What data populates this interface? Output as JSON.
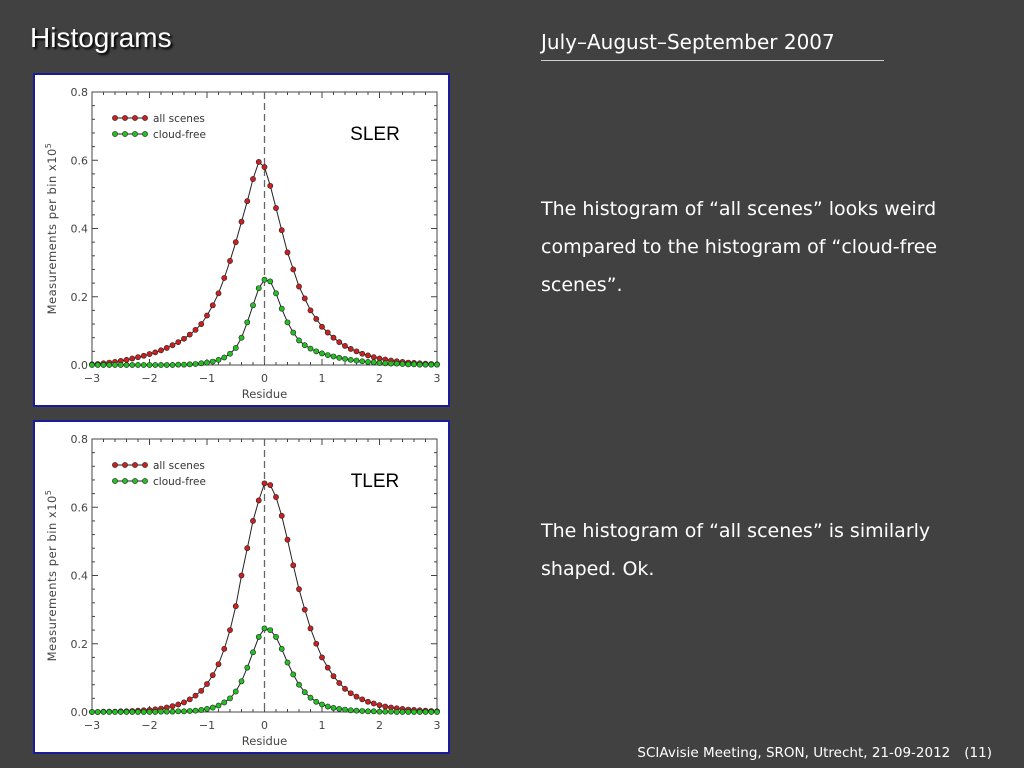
{
  "header": {
    "title": "Histograms",
    "period": "July–August–September 2007"
  },
  "notes": [
    "The histogram of “all scenes” looks weird compared to the histogram of “cloud-free scenes”.",
    "The histogram of “all scenes” is similarly shaped. Ok."
  ],
  "footer": {
    "text": "SCIAvisie Meeting, SRON, Utrecht, 21-09-2012",
    "page": "(11)"
  },
  "colors": {
    "background": "#414141",
    "all_scenes": "#cc2020",
    "cloud_free": "#22c022",
    "panel_border": "#1a1a9a"
  },
  "chart_data": [
    {
      "type": "line",
      "title": "SLER",
      "xlabel": "Residue",
      "ylabel": "Measurements per bin x10",
      "ylabel_exponent": "5",
      "xlim": [
        -3,
        3
      ],
      "ylim": [
        0,
        0.8
      ],
      "xticks": [
        "−3",
        "−2",
        "−1",
        "0",
        "1",
        "2",
        "3"
      ],
      "yticks": [
        "0.0",
        "0.2",
        "0.4",
        "0.6",
        "0.8"
      ],
      "reference_line_x": 0,
      "legend_position": "top-left",
      "x": [
        -3.0,
        -2.9,
        -2.8,
        -2.7,
        -2.6,
        -2.5,
        -2.4,
        -2.3,
        -2.2,
        -2.1,
        -2.0,
        -1.9,
        -1.8,
        -1.7,
        -1.6,
        -1.5,
        -1.4,
        -1.3,
        -1.2,
        -1.1,
        -1.0,
        -0.9,
        -0.8,
        -0.7,
        -0.6,
        -0.5,
        -0.4,
        -0.3,
        -0.2,
        -0.1,
        0.0,
        0.1,
        0.2,
        0.3,
        0.4,
        0.5,
        0.6,
        0.7,
        0.8,
        0.9,
        1.0,
        1.1,
        1.2,
        1.3,
        1.4,
        1.5,
        1.6,
        1.7,
        1.8,
        1.9,
        2.0,
        2.1,
        2.2,
        2.3,
        2.4,
        2.5,
        2.6,
        2.7,
        2.8,
        2.9,
        3.0
      ],
      "series": [
        {
          "name": "all scenes",
          "values": [
            0.002,
            0.003,
            0.005,
            0.007,
            0.009,
            0.012,
            0.015,
            0.019,
            0.023,
            0.027,
            0.032,
            0.037,
            0.043,
            0.05,
            0.058,
            0.067,
            0.077,
            0.089,
            0.103,
            0.12,
            0.145,
            0.175,
            0.21,
            0.255,
            0.305,
            0.36,
            0.42,
            0.48,
            0.545,
            0.595,
            0.58,
            0.525,
            0.46,
            0.395,
            0.33,
            0.28,
            0.23,
            0.195,
            0.16,
            0.135,
            0.112,
            0.095,
            0.08,
            0.067,
            0.056,
            0.047,
            0.04,
            0.033,
            0.028,
            0.023,
            0.019,
            0.016,
            0.013,
            0.011,
            0.009,
            0.007,
            0.006,
            0.005,
            0.004,
            0.003,
            0.002
          ]
        },
        {
          "name": "cloud-free",
          "values": [
            0.0,
            0.0,
            0.0,
            0.0,
            0.0,
            0.0,
            0.0,
            0.0,
            0.0,
            0.0,
            0.0,
            0.0,
            0.0,
            0.0,
            0.0,
            0.001,
            0.001,
            0.002,
            0.003,
            0.005,
            0.007,
            0.01,
            0.015,
            0.022,
            0.033,
            0.05,
            0.08,
            0.125,
            0.175,
            0.225,
            0.25,
            0.245,
            0.21,
            0.165,
            0.125,
            0.095,
            0.072,
            0.058,
            0.048,
            0.04,
            0.034,
            0.029,
            0.025,
            0.021,
            0.018,
            0.015,
            0.013,
            0.011,
            0.009,
            0.008,
            0.006,
            0.005,
            0.004,
            0.004,
            0.003,
            0.002,
            0.002,
            0.001,
            0.001,
            0.001,
            0.001
          ]
        }
      ]
    },
    {
      "type": "line",
      "title": "TLER",
      "xlabel": "Residue",
      "ylabel": "Measurements per bin x10",
      "ylabel_exponent": "5",
      "xlim": [
        -3,
        3
      ],
      "ylim": [
        0,
        0.8
      ],
      "xticks": [
        "−3",
        "−2",
        "−1",
        "0",
        "1",
        "2",
        "3"
      ],
      "yticks": [
        "0.0",
        "0.2",
        "0.4",
        "0.6",
        "0.8"
      ],
      "reference_line_x": 0,
      "legend_position": "top-left",
      "x": [
        -3.0,
        -2.9,
        -2.8,
        -2.7,
        -2.6,
        -2.5,
        -2.4,
        -2.3,
        -2.2,
        -2.1,
        -2.0,
        -1.9,
        -1.8,
        -1.7,
        -1.6,
        -1.5,
        -1.4,
        -1.3,
        -1.2,
        -1.1,
        -1.0,
        -0.9,
        -0.8,
        -0.7,
        -0.6,
        -0.5,
        -0.4,
        -0.3,
        -0.2,
        -0.1,
        0.0,
        0.1,
        0.2,
        0.3,
        0.4,
        0.5,
        0.6,
        0.7,
        0.8,
        0.9,
        1.0,
        1.1,
        1.2,
        1.3,
        1.4,
        1.5,
        1.6,
        1.7,
        1.8,
        1.9,
        2.0,
        2.1,
        2.2,
        2.3,
        2.4,
        2.5,
        2.6,
        2.7,
        2.8,
        2.9,
        3.0
      ],
      "series": [
        {
          "name": "all scenes",
          "values": [
            0.0,
            0.0,
            0.001,
            0.001,
            0.001,
            0.002,
            0.002,
            0.003,
            0.004,
            0.005,
            0.006,
            0.008,
            0.01,
            0.013,
            0.017,
            0.022,
            0.028,
            0.037,
            0.048,
            0.062,
            0.082,
            0.108,
            0.14,
            0.185,
            0.24,
            0.31,
            0.4,
            0.48,
            0.56,
            0.62,
            0.67,
            0.665,
            0.63,
            0.575,
            0.505,
            0.43,
            0.36,
            0.3,
            0.245,
            0.2,
            0.16,
            0.13,
            0.105,
            0.085,
            0.068,
            0.055,
            0.045,
            0.037,
            0.03,
            0.025,
            0.02,
            0.016,
            0.013,
            0.011,
            0.009,
            0.007,
            0.006,
            0.005,
            0.004,
            0.003,
            0.002
          ]
        },
        {
          "name": "cloud-free",
          "values": [
            0.0,
            0.0,
            0.0,
            0.0,
            0.0,
            0.0,
            0.0,
            0.0,
            0.0,
            0.0,
            0.0,
            0.0,
            0.001,
            0.001,
            0.001,
            0.002,
            0.002,
            0.003,
            0.004,
            0.006,
            0.009,
            0.013,
            0.019,
            0.028,
            0.04,
            0.06,
            0.09,
            0.13,
            0.175,
            0.22,
            0.245,
            0.24,
            0.22,
            0.185,
            0.145,
            0.11,
            0.08,
            0.058,
            0.042,
            0.03,
            0.022,
            0.016,
            0.012,
            0.009,
            0.007,
            0.005,
            0.004,
            0.003,
            0.002,
            0.002,
            0.001,
            0.001,
            0.001,
            0.0,
            0.0,
            0.0,
            0.0,
            0.0,
            0.0,
            0.0,
            0.0
          ]
        }
      ]
    }
  ]
}
